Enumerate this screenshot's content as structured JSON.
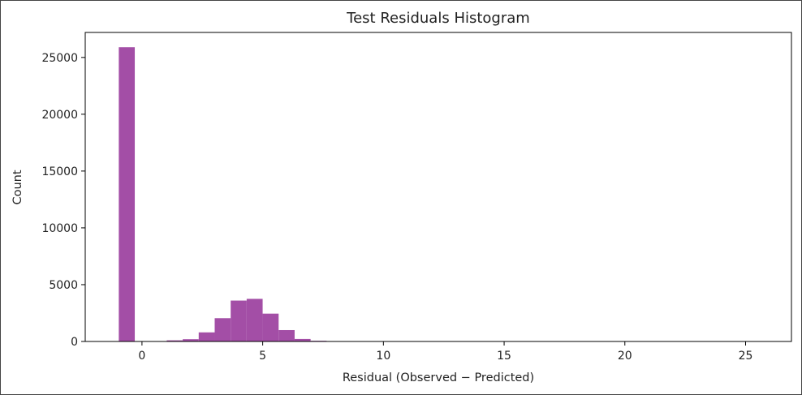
{
  "chart_data": {
    "type": "bar",
    "title": "Test Residuals Histogram",
    "xlabel": "Residual (Observed − Predicted)",
    "ylabel": "Count",
    "xlim": [
      -2.35,
      26.9
    ],
    "ylim": [
      0,
      27200
    ],
    "xticks": [
      0,
      5,
      10,
      15,
      20,
      25
    ],
    "yticks": [
      0,
      5000,
      10000,
      15000,
      20000,
      25000
    ],
    "bar_color": "#a34ea6",
    "bin_width": 0.662,
    "bins": [
      {
        "x0": -0.96,
        "count": 25900
      },
      {
        "x0": -0.298,
        "count": 0
      },
      {
        "x0": 0.364,
        "count": 0
      },
      {
        "x0": 1.026,
        "count": 100
      },
      {
        "x0": 1.688,
        "count": 200
      },
      {
        "x0": 2.35,
        "count": 800
      },
      {
        "x0": 3.012,
        "count": 2050
      },
      {
        "x0": 3.674,
        "count": 3600
      },
      {
        "x0": 4.336,
        "count": 3750
      },
      {
        "x0": 4.998,
        "count": 2450
      },
      {
        "x0": 5.66,
        "count": 1000
      },
      {
        "x0": 6.322,
        "count": 220
      },
      {
        "x0": 6.984,
        "count": 60
      },
      {
        "x0": 7.646,
        "count": 10
      }
    ],
    "grid": false,
    "legend": "none"
  }
}
